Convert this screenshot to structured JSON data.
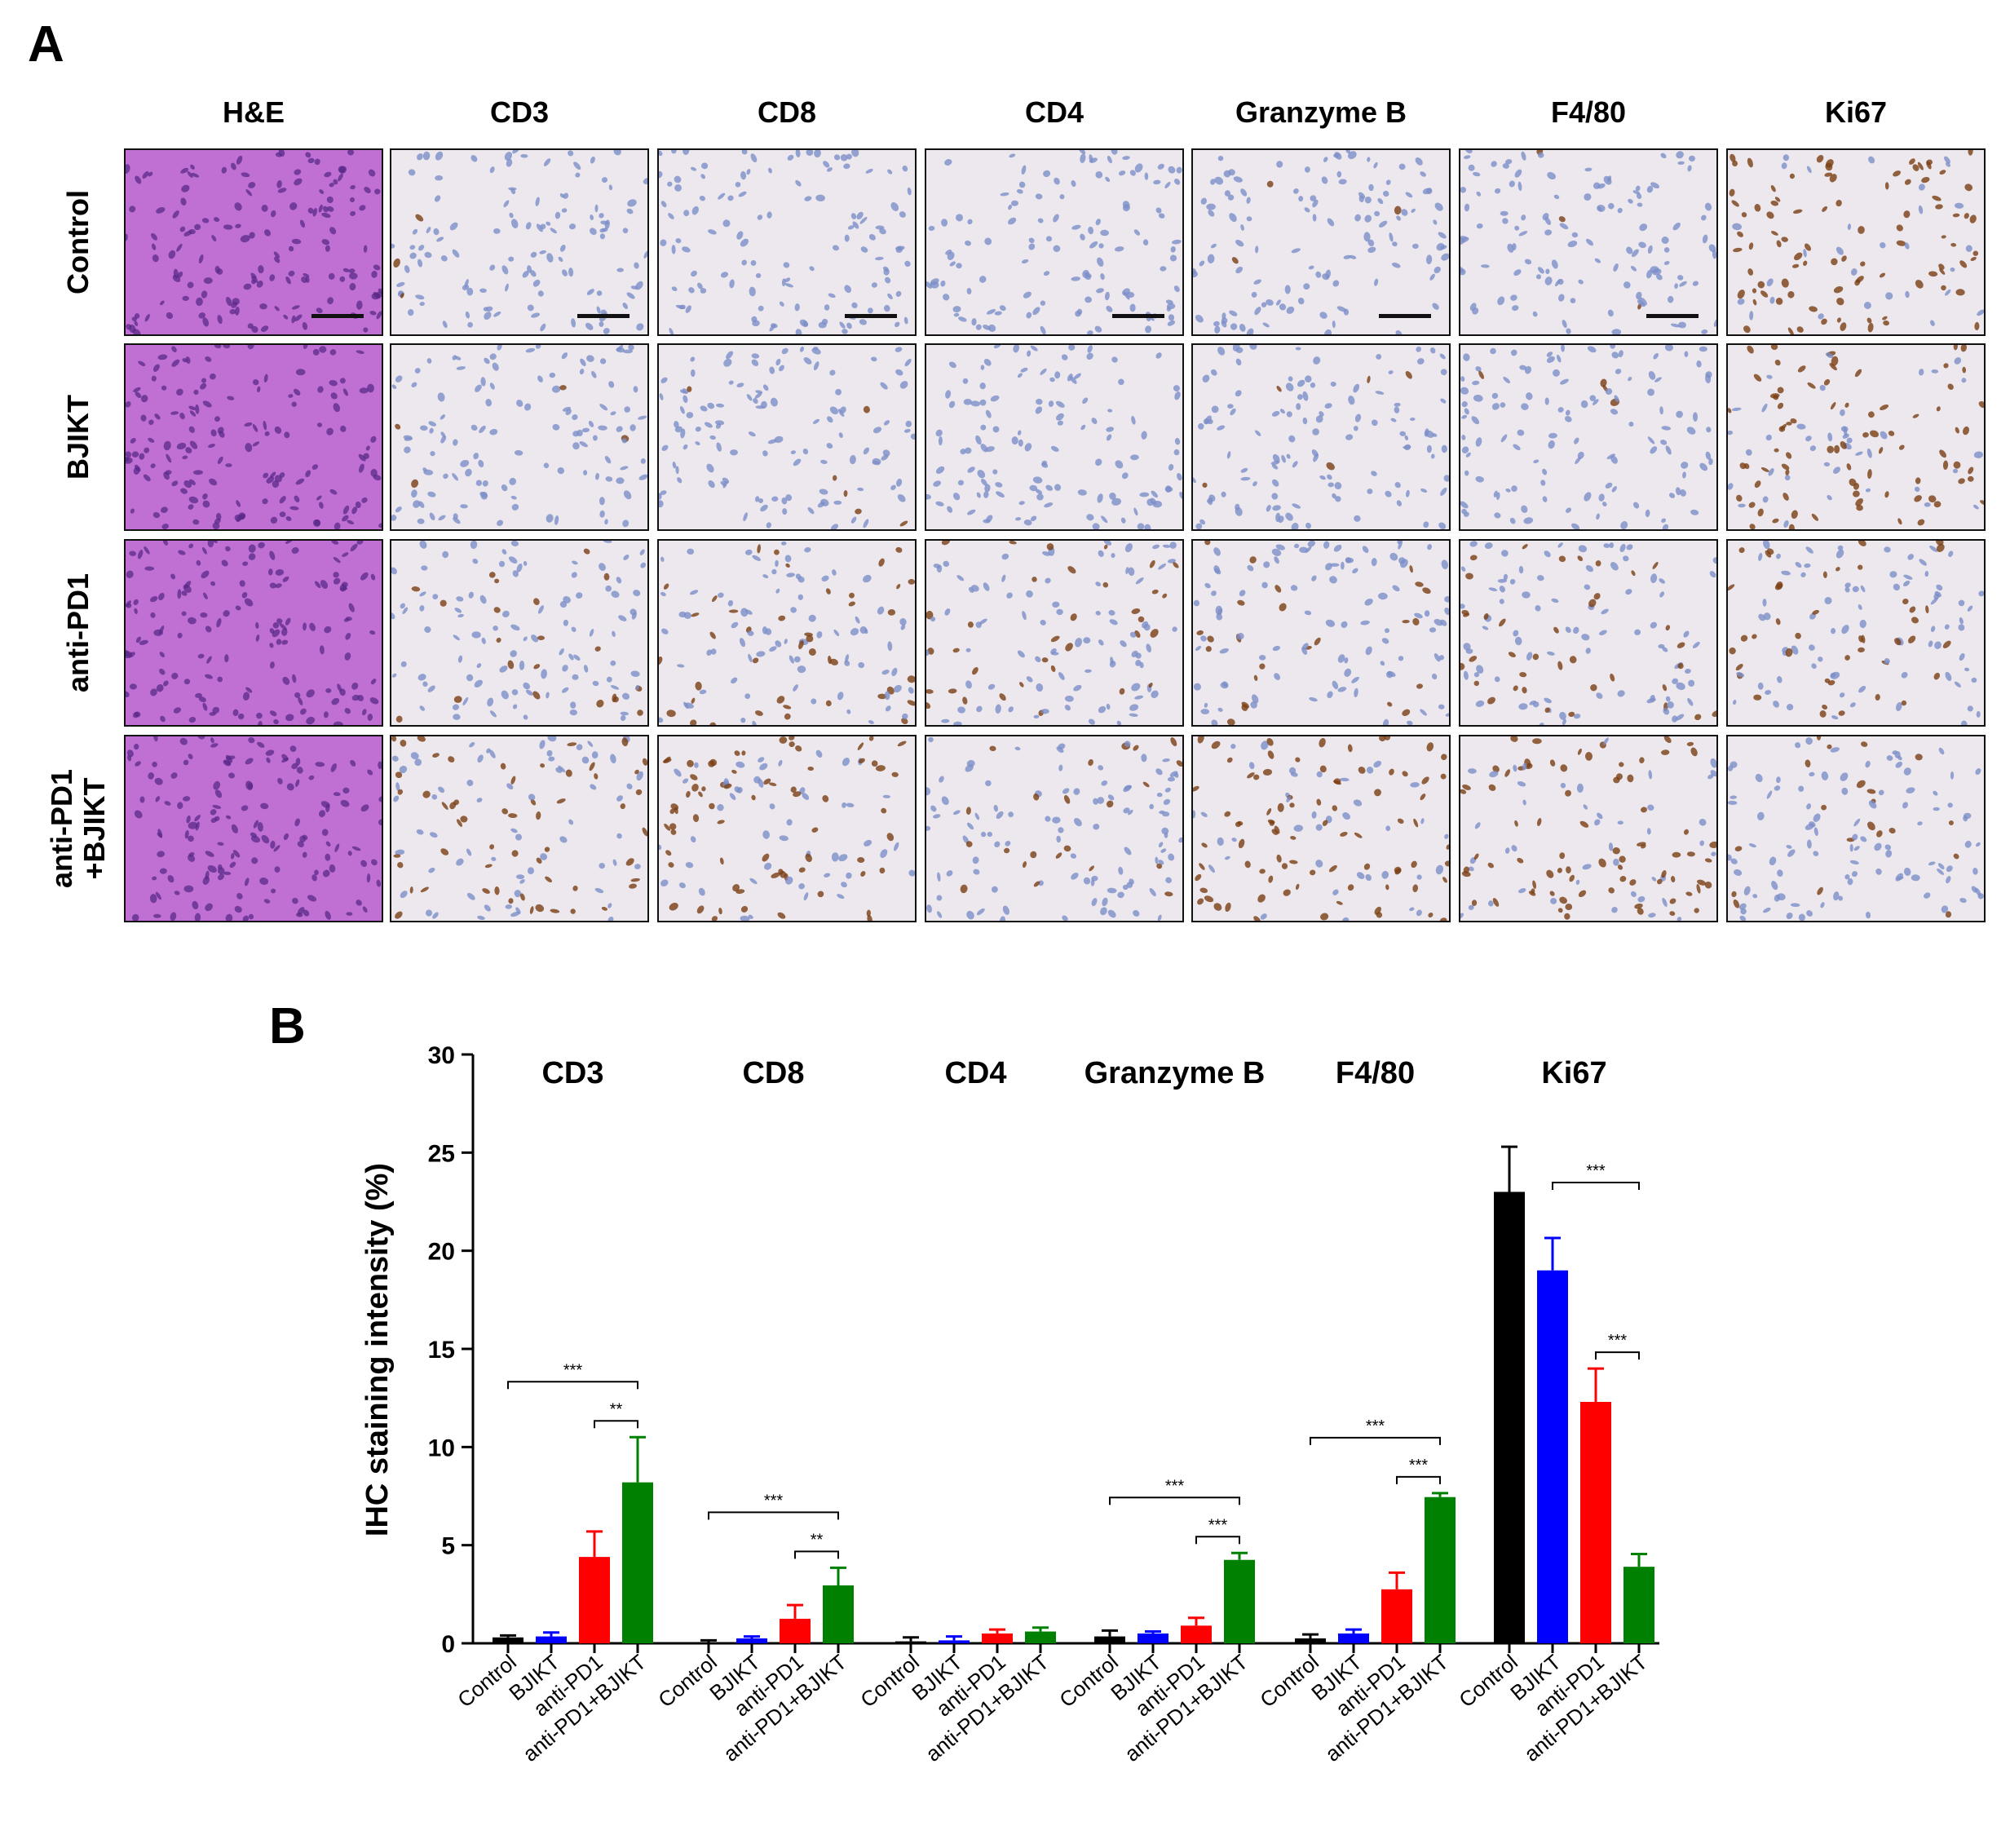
{
  "panels": {
    "a_label": "A",
    "b_label": "B"
  },
  "ihc_grid": {
    "columns": [
      "H&E",
      "CD3",
      "CD8",
      "CD4",
      "Granzyme B",
      "F4/80",
      "Ki67"
    ],
    "rows": [
      {
        "label": "Control",
        "label_lines": [
          "Control"
        ]
      },
      {
        "label": "BJIKT",
        "label_lines": [
          "BJIKT"
        ]
      },
      {
        "label": "anti-PD1",
        "label_lines": [
          "anti-PD1"
        ]
      },
      {
        "label": "anti-PD1 +BJIKT",
        "label_lines": [
          "anti-PD1",
          "+BJIKT"
        ]
      }
    ],
    "stain_levels": [
      [
        0,
        0.02,
        0.0,
        0.0,
        0.02,
        0.02,
        0.75
      ],
      [
        0,
        0.02,
        0.05,
        0.0,
        0.05,
        0.06,
        0.65
      ],
      [
        0,
        0.15,
        0.25,
        0.25,
        0.2,
        0.3,
        0.35
      ],
      [
        0,
        0.55,
        0.45,
        0.2,
        0.7,
        0.65,
        0.15
      ]
    ],
    "colors": {
      "he_background": "#c070d2",
      "he_nuclei": "#5a2a8a",
      "ihc_background": "#ece8ee",
      "ihc_nuclei": "#7d8ec8",
      "dab_brown": "#7a3d12"
    }
  },
  "chart_data": {
    "type": "bar",
    "ylabel": "IHC staining intensity (%)",
    "ylim": [
      0,
      30
    ],
    "yticks": [
      0,
      5,
      10,
      15,
      20,
      25,
      30
    ],
    "groups": [
      {
        "name": "CD3",
        "categories": [
          "Control",
          "BJIKT",
          "anti-PD1",
          "anti-PD1+BJIKT"
        ],
        "values": [
          0.3,
          0.35,
          4.4,
          8.2
        ],
        "errors": [
          0.1,
          0.2,
          1.3,
          2.3
        ],
        "significance": [
          {
            "from": 0,
            "to": 3,
            "label": "***"
          },
          {
            "from": 2,
            "to": 3,
            "label": "**"
          }
        ]
      },
      {
        "name": "CD8",
        "categories": [
          "Control",
          "BJIKT",
          "anti-PD1",
          "anti-PD1+BJIKT"
        ],
        "values": [
          0.05,
          0.25,
          1.25,
          2.95
        ],
        "errors": [
          0.1,
          0.1,
          0.7,
          0.9
        ],
        "significance": [
          {
            "from": 0,
            "to": 3,
            "label": "***"
          },
          {
            "from": 2,
            "to": 3,
            "label": "**"
          }
        ]
      },
      {
        "name": "CD4",
        "categories": [
          "Control",
          "BJIKT",
          "anti-PD1",
          "anti-PD1+BJIKT"
        ],
        "values": [
          0.1,
          0.15,
          0.5,
          0.6
        ],
        "errors": [
          0.2,
          0.2,
          0.2,
          0.2
        ],
        "significance": []
      },
      {
        "name": "Granzyme B",
        "categories": [
          "Control",
          "BJIKT",
          "anti-PD1",
          "anti-PD1+BJIKT"
        ],
        "values": [
          0.35,
          0.5,
          0.9,
          4.25
        ],
        "errors": [
          0.3,
          0.1,
          0.4,
          0.35
        ],
        "significance": [
          {
            "from": 0,
            "to": 3,
            "label": "***"
          },
          {
            "from": 2,
            "to": 3,
            "label": "***"
          }
        ]
      },
      {
        "name": "F4/80",
        "categories": [
          "Control",
          "BJIKT",
          "anti-PD1",
          "anti-PD1+BJIKT"
        ],
        "values": [
          0.25,
          0.5,
          2.75,
          7.45
        ],
        "errors": [
          0.2,
          0.2,
          0.85,
          0.2
        ],
        "significance": [
          {
            "from": 0,
            "to": 3,
            "label": "***"
          },
          {
            "from": 2,
            "to": 3,
            "label": "***"
          }
        ]
      },
      {
        "name": "Ki67",
        "categories": [
          "Control",
          "BJIKT",
          "anti-PD1",
          "anti-PD1+BJIKT"
        ],
        "values": [
          23.0,
          19.0,
          12.3,
          3.9
        ],
        "errors": [
          2.3,
          1.65,
          1.7,
          0.65
        ],
        "significance": [
          {
            "from": 1,
            "to": 3,
            "label": "***"
          },
          {
            "from": 2,
            "to": 3,
            "label": "***"
          }
        ]
      }
    ],
    "bar_colors": [
      "#000000",
      "#0000ff",
      "#ff0000",
      "#008000"
    ],
    "grid": false,
    "legend": "none"
  }
}
